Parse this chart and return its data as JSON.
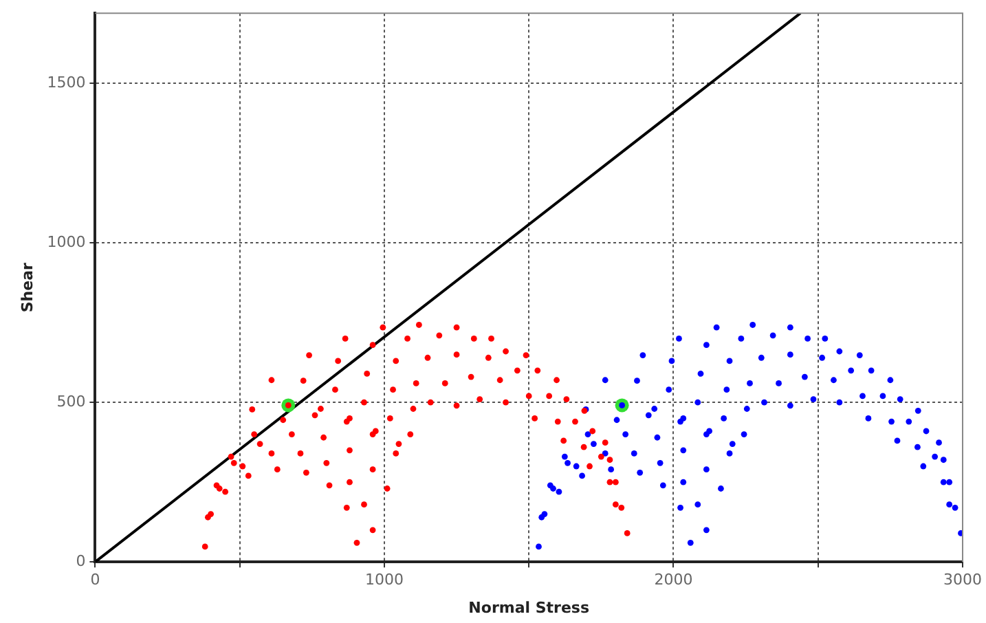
{
  "chart_data": {
    "type": "scatter",
    "xlabel": "Normal Stress",
    "ylabel": "Shear",
    "xlim": [
      0,
      3000
    ],
    "ylim": [
      0,
      1720
    ],
    "xticks": [
      0,
      {
        "value": 500,
        "label": null
      },
      1000,
      {
        "value": 1500,
        "label": null
      },
      2000,
      {
        "value": 2500,
        "label": null
      },
      3000
    ],
    "yticks": [
      0,
      500,
      1000,
      1500
    ],
    "grid": true,
    "marker": "circle",
    "series": [
      {
        "color": "#ff0000",
        "x": [
          380,
          400,
          450,
          530,
          630,
          730,
          810,
          870,
          905,
          390,
          430,
          510,
          610,
          710,
          800,
          880,
          930,
          960,
          420,
          480,
          570,
          680,
          790,
          880,
          960,
          1010,
          470,
          550,
          650,
          760,
          870,
          960,
          1040,
          543,
          668,
          780,
          880,
          970,
          1050,
          610,
          720,
          830,
          930,
          1020,
          1090,
          740,
          840,
          940,
          1030,
          1100,
          865,
          960,
          1040,
          1110,
          1160,
          995,
          1080,
          1150,
          1210,
          1250,
          1120,
          1190,
          1250,
          1300,
          1330,
          1250,
          1310,
          1360,
          1400,
          1420,
          1370,
          1420,
          1460,
          1500,
          1520,
          1490,
          1530,
          1570,
          1600,
          1620,
          1596,
          1630,
          1660,
          1690,
          1710,
          1692,
          1720,
          1750,
          1780,
          1800,
          1764,
          1780,
          1800,
          1820,
          1840
        ],
        "values": [
          48,
          150,
          220,
          270,
          290,
          280,
          240,
          170,
          60,
          140,
          230,
          300,
          340,
          340,
          310,
          250,
          180,
          100,
          240,
          310,
          370,
          400,
          390,
          350,
          290,
          230,
          330,
          400,
          445,
          460,
          440,
          400,
          340,
          478,
          491,
          480,
          450,
          410,
          370,
          570,
          568,
          540,
          500,
          450,
          400,
          648,
          630,
          590,
          540,
          480,
          700,
          680,
          630,
          560,
          500,
          735,
          700,
          640,
          560,
          490,
          743,
          710,
          650,
          580,
          510,
          735,
          700,
          640,
          570,
          500,
          700,
          660,
          600,
          520,
          450,
          648,
          600,
          520,
          440,
          380,
          570,
          510,
          440,
          360,
          300,
          474,
          410,
          330,
          250,
          180,
          374,
          320,
          250,
          170,
          90
        ]
      },
      {
        "color": "#0000ff",
        "x": [
          1534,
          1554,
          1604,
          1684,
          1784,
          1884,
          1964,
          2024,
          2059,
          1544,
          1584,
          1664,
          1764,
          1864,
          1954,
          2034,
          2084,
          2114,
          1574,
          1634,
          1724,
          1834,
          1944,
          2034,
          2114,
          2164,
          1624,
          1704,
          1804,
          1914,
          2024,
          2114,
          2194,
          1697,
          1822,
          1934,
          2034,
          2124,
          2204,
          1764,
          1874,
          1984,
          2084,
          2174,
          2244,
          1894,
          1994,
          2094,
          2184,
          2254,
          2019,
          2114,
          2194,
          2264,
          2314,
          2149,
          2234,
          2304,
          2364,
          2404,
          2274,
          2344,
          2404,
          2454,
          2484,
          2404,
          2464,
          2514,
          2554,
          2574,
          2524,
          2574,
          2614,
          2654,
          2674,
          2644,
          2684,
          2724,
          2754,
          2774,
          2750,
          2784,
          2814,
          2844,
          2864,
          2846,
          2874,
          2904,
          2934,
          2954,
          2918,
          2934,
          2954,
          2974,
          2994
        ],
        "values": [
          48,
          150,
          220,
          270,
          290,
          280,
          240,
          170,
          60,
          140,
          230,
          300,
          340,
          340,
          310,
          250,
          180,
          100,
          240,
          310,
          370,
          400,
          390,
          350,
          290,
          230,
          330,
          400,
          445,
          460,
          440,
          400,
          340,
          478,
          491,
          480,
          450,
          410,
          370,
          570,
          568,
          540,
          500,
          450,
          400,
          648,
          630,
          590,
          540,
          480,
          700,
          680,
          630,
          560,
          500,
          735,
          700,
          640,
          560,
          490,
          743,
          710,
          650,
          580,
          510,
          735,
          700,
          640,
          570,
          500,
          700,
          660,
          600,
          520,
          450,
          648,
          600,
          520,
          440,
          380,
          570,
          510,
          440,
          360,
          300,
          474,
          410,
          330,
          250,
          180,
          374,
          320,
          250,
          170,
          90
        ]
      },
      {
        "color": "#33dd33",
        "x": [
          668,
          1822
        ],
        "values": [
          491,
          491
        ]
      },
      {
        "type": "line",
        "color": "#000000",
        "marker": "none",
        "x": [
          0,
          2439
        ],
        "values": [
          0,
          1720
        ]
      }
    ]
  }
}
